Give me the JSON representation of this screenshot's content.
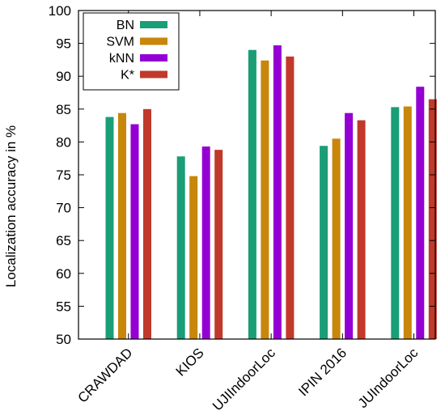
{
  "chart_data": {
    "type": "bar",
    "title": "",
    "xlabel": "",
    "ylabel": "Localization accuracy in %",
    "ylim": [
      50,
      100
    ],
    "yticks": [
      50,
      55,
      60,
      65,
      70,
      75,
      80,
      85,
      90,
      95,
      100
    ],
    "categories": [
      "CRAWDAD",
      "KIOS",
      "UJIIndoorLoc",
      "IPIN 2016",
      "JUIndoorLoc"
    ],
    "series": [
      {
        "name": "BN",
        "color": "#1a9e77",
        "values": [
          83.8,
          77.8,
          94.0,
          79.4,
          85.3
        ]
      },
      {
        "name": "SVM",
        "color": "#c8860a",
        "values": [
          84.4,
          74.8,
          92.4,
          80.5,
          85.4
        ]
      },
      {
        "name": "kNN",
        "color": "#9400d3",
        "values": [
          82.7,
          79.3,
          94.7,
          84.4,
          88.4
        ]
      },
      {
        "name": "K*",
        "color": "#c0392b",
        "values": [
          85.0,
          78.8,
          93.0,
          83.3,
          86.5
        ]
      }
    ],
    "grid": false,
    "legend_position": "top-left"
  }
}
